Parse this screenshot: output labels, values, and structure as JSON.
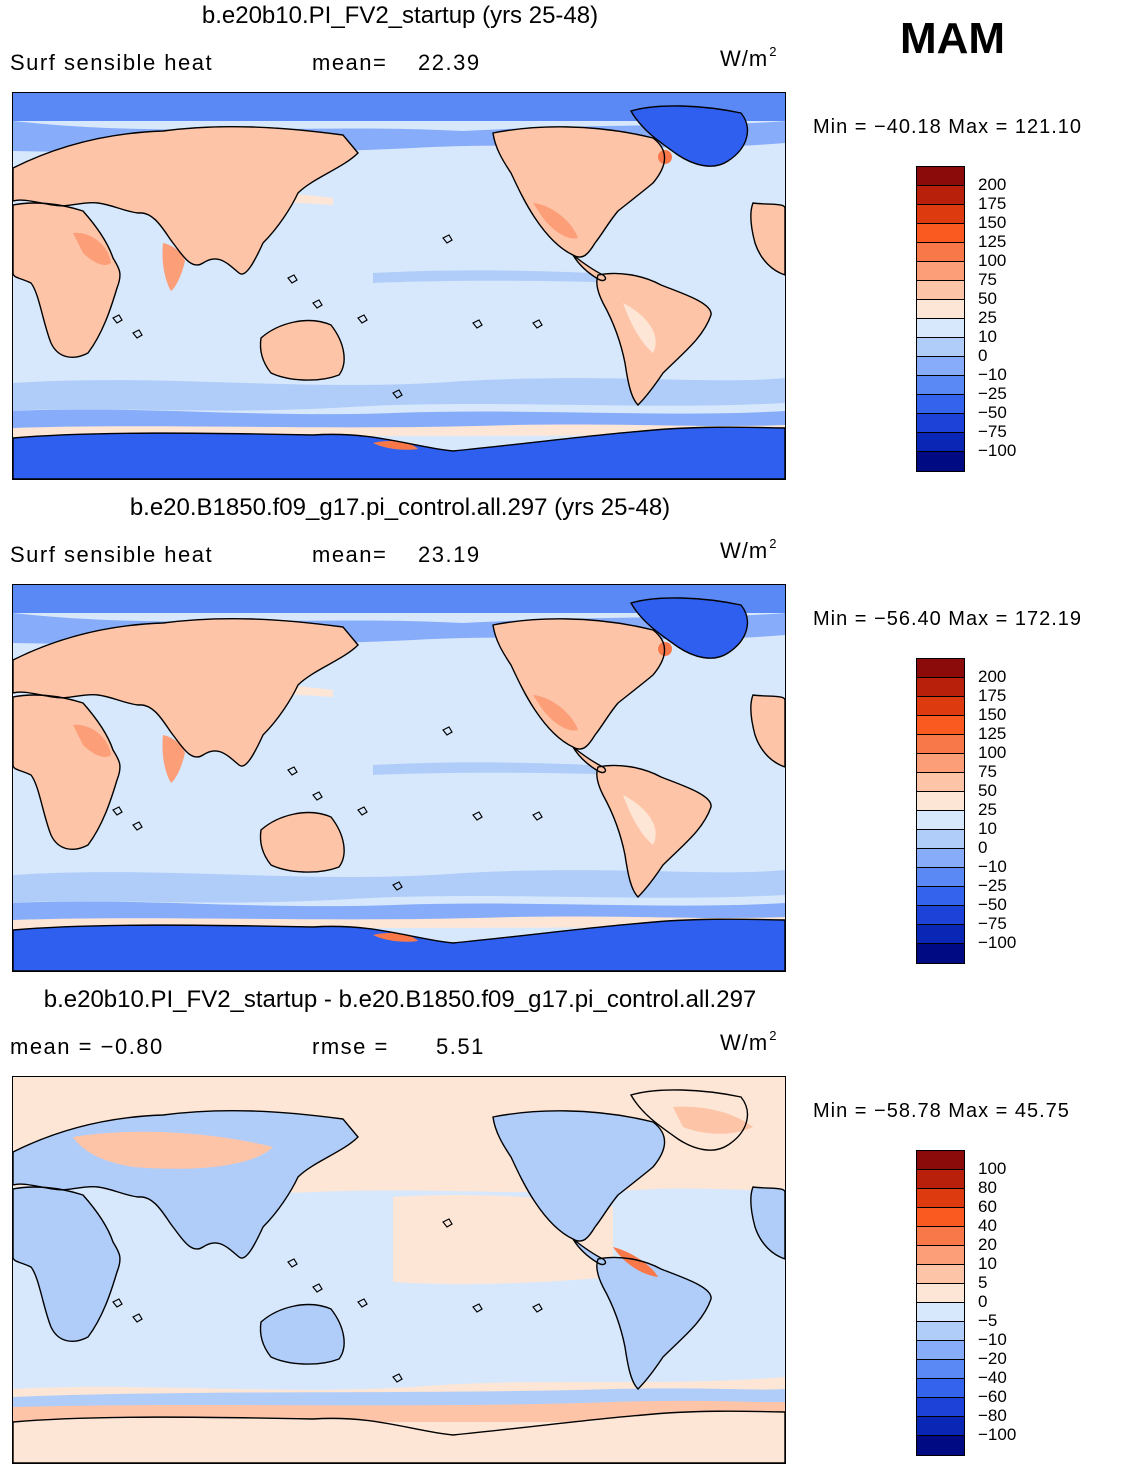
{
  "season": "MAM",
  "units": {
    "base": "W/m",
    "exp": "2"
  },
  "panels": [
    {
      "title": "b.e20b10.PI_FV2_startup (yrs 25-48)",
      "left_label": "Surf  sensible  heat",
      "stat_label": "mean=",
      "stat_value": "22.39",
      "min_max": "Min  =  −40.18  Max  =  121.10",
      "levels": [
        "200",
        "175",
        "150",
        "125",
        "100",
        "75",
        "50",
        "25",
        "10",
        "0",
        "−10",
        "−25",
        "−50",
        "−75",
        "−100"
      ],
      "map_kind": "mean"
    },
    {
      "title": "b.e20.B1850.f09_g17.pi_control.all.297 (yrs 25-48)",
      "left_label": "Surf  sensible  heat",
      "stat_label": "mean=",
      "stat_value": "23.19",
      "min_max": "Min  =  −56.40  Max  =  172.19",
      "levels": [
        "200",
        "175",
        "150",
        "125",
        "100",
        "75",
        "50",
        "25",
        "10",
        "0",
        "−10",
        "−25",
        "−50",
        "−75",
        "−100"
      ],
      "map_kind": "mean"
    },
    {
      "title": "b.e20b10.PI_FV2_startup - b.e20.B1850.f09_g17.pi_control.all.297",
      "left_label": "mean  =    −0.80",
      "stat_label": "rmse  =",
      "stat_value": "5.51",
      "min_max": "Min  =  −58.78  Max  =    45.75",
      "levels": [
        "100",
        "80",
        "60",
        "40",
        "20",
        "10",
        "5",
        "0",
        "−5",
        "−10",
        "−20",
        "−40",
        "−60",
        "−80",
        "−100"
      ],
      "map_kind": "diff"
    }
  ],
  "colorbar_colors": [
    "#8b0a0a",
    "#b8200c",
    "#de3a10",
    "#fa5a20",
    "#f9784a",
    "#fc9e78",
    "#fdc4a8",
    "#fde6d6",
    "#d7e8fc",
    "#b0cdfa",
    "#87acfa",
    "#5a88f5",
    "#3464ee",
    "#1c42d8",
    "#0a26b4",
    "#000a82"
  ],
  "map_colors": {
    "ocean": "#d7e8fc",
    "light_blue": "#b0cdfa",
    "mid_blue": "#87acfa",
    "blue": "#5a88f5",
    "strong_blue": "#2f5fee",
    "land_warm": "#fdc4a8",
    "land_hot": "#fc9e78",
    "land_pale": "#fde6d6",
    "hot_spot": "#f9784a",
    "coast": "#000000"
  }
}
